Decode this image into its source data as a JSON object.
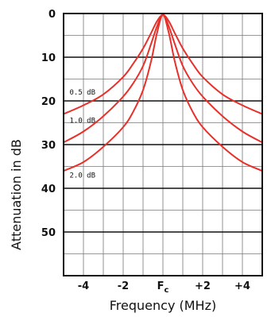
{
  "chart_data": {
    "type": "line",
    "title": "",
    "xlabel": "Frequency (MHz)",
    "ylabel": "Attenuation in dB",
    "xlim": [
      -5,
      5
    ],
    "ylim": [
      0,
      60
    ],
    "y_inverted": true,
    "grid": true,
    "x_ticks": [
      {
        "value": -4,
        "label": "-4"
      },
      {
        "value": -2,
        "label": "-2"
      },
      {
        "value": 0,
        "label": "F",
        "sub": "c"
      },
      {
        "value": 2,
        "label": "+2"
      },
      {
        "value": 4,
        "label": "+4"
      }
    ],
    "y_ticks": [
      {
        "value": 0,
        "label": "0"
      },
      {
        "value": 10,
        "label": "10"
      },
      {
        "value": 20,
        "label": "20"
      },
      {
        "value": 30,
        "label": "30"
      },
      {
        "value": 40,
        "label": "40"
      },
      {
        "value": 50,
        "label": "50"
      }
    ],
    "line_color": "#e8302a",
    "series": [
      {
        "name": "0.5 dB",
        "x": [
          -5,
          -4,
          -3,
          -2,
          -1.5,
          -1,
          -0.6,
          -0.3,
          0,
          0.3,
          0.6,
          1,
          1.5,
          2,
          3,
          4,
          5
        ],
        "y": [
          23,
          21,
          18.5,
          14.5,
          11.5,
          8,
          4.5,
          1.8,
          0.3,
          1.8,
          4.5,
          8,
          11.5,
          14.5,
          18.5,
          21,
          23
        ]
      },
      {
        "name": "1.0 dB",
        "x": [
          -5,
          -4,
          -3,
          -2,
          -1.5,
          -1,
          -0.6,
          -0.3,
          0,
          0.3,
          0.6,
          1,
          1.5,
          2,
          3,
          4,
          5
        ],
        "y": [
          29.5,
          27,
          23.5,
          19,
          16,
          12,
          7,
          3,
          0.3,
          3,
          7,
          12,
          16,
          19,
          23.5,
          27,
          29.5
        ]
      },
      {
        "name": "2.0 dB",
        "x": [
          -5,
          -4,
          -3,
          -2,
          -1.5,
          -1,
          -0.6,
          -0.3,
          0,
          0.3,
          0.6,
          1,
          1.5,
          2,
          3,
          4,
          5
        ],
        "y": [
          36,
          34,
          30.5,
          26,
          22.5,
          17.5,
          11,
          4.5,
          0.3,
          4.5,
          11,
          17.5,
          22.5,
          26,
          30.5,
          34,
          36
        ]
      }
    ],
    "annotations": [
      {
        "text": "0.5 dB",
        "x": -4.7,
        "y": 18.5
      },
      {
        "text": "1.0 dB",
        "x": -4.7,
        "y": 25
      },
      {
        "text": "2.0 dB",
        "x": -4.7,
        "y": 37.5
      }
    ]
  }
}
